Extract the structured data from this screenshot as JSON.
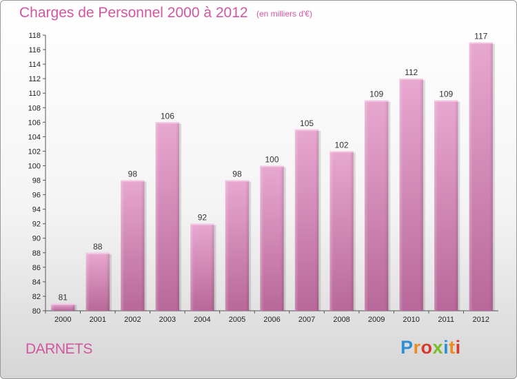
{
  "header": {
    "title": "Charges de Personnel 2000 à 2012",
    "subtitle": "(en milliers d'€)"
  },
  "footer": {
    "commune": "DARNETS",
    "logo": "Proxiti",
    "logo_colors": [
      "#2b8fd6",
      "#f08a1c",
      "#d63a2e",
      "#7cbb2a",
      "#2b8fd6",
      "#f08a1c",
      "#d63a2e"
    ]
  },
  "colors": {
    "bar_top": "#e8a8d0",
    "bar_bottom": "#b8689a",
    "title": "#d2569f"
  },
  "chart_data": {
    "type": "bar",
    "title": "Charges de Personnel 2000 à 2012",
    "subtitle": "(en milliers d'€)",
    "categories": [
      "2000",
      "2001",
      "2002",
      "2003",
      "2004",
      "2005",
      "2006",
      "2007",
      "2008",
      "2009",
      "2010",
      "2011",
      "2012"
    ],
    "values": [
      81,
      88,
      98,
      106,
      92,
      98,
      100,
      105,
      102,
      109,
      112,
      109,
      117
    ],
    "ylim": [
      80,
      118
    ],
    "ytick_step": 2,
    "grid": false,
    "data_labels": true
  }
}
